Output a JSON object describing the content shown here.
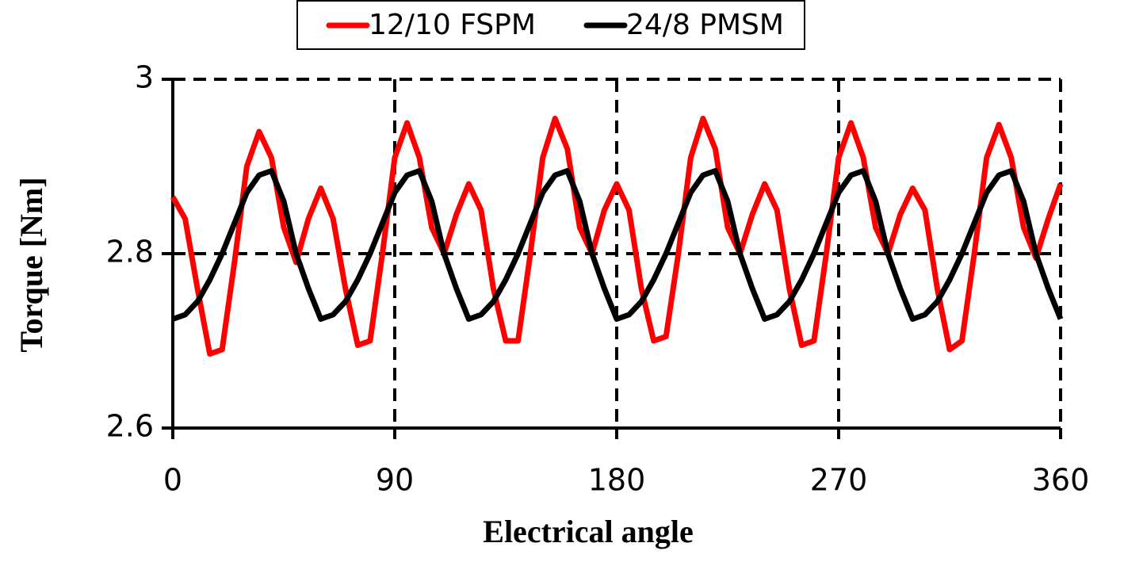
{
  "chart_data": {
    "type": "line",
    "xlabel": "Electrical angle",
    "ylabel": "Torque [Nm]",
    "x": [
      0,
      5,
      10,
      15,
      20,
      25,
      30,
      35,
      40,
      45,
      50,
      55,
      60,
      65,
      70,
      75,
      80,
      85,
      90,
      95,
      100,
      105,
      110,
      115,
      120,
      125,
      130,
      135,
      140,
      145,
      150,
      155,
      160,
      165,
      170,
      175,
      180,
      185,
      190,
      195,
      200,
      205,
      210,
      215,
      220,
      225,
      230,
      235,
      240,
      245,
      250,
      255,
      260,
      265,
      270,
      275,
      280,
      285,
      290,
      295,
      300,
      305,
      310,
      315,
      320,
      325,
      330,
      335,
      340,
      345,
      350,
      355,
      360
    ],
    "series": [
      {
        "name": "12/10 FSPM",
        "color": "#ff0000",
        "values": [
          2.865,
          2.84,
          2.76,
          2.685,
          2.69,
          2.79,
          2.9,
          2.94,
          2.91,
          2.83,
          2.79,
          2.84,
          2.875,
          2.84,
          2.76,
          2.695,
          2.7,
          2.8,
          2.91,
          2.95,
          2.91,
          2.83,
          2.8,
          2.845,
          2.88,
          2.85,
          2.76,
          2.7,
          2.7,
          2.8,
          2.91,
          2.955,
          2.92,
          2.83,
          2.8,
          2.85,
          2.88,
          2.85,
          2.76,
          2.7,
          2.705,
          2.8,
          2.91,
          2.955,
          2.92,
          2.83,
          2.8,
          2.845,
          2.88,
          2.85,
          2.76,
          2.695,
          2.7,
          2.8,
          2.91,
          2.95,
          2.91,
          2.83,
          2.8,
          2.845,
          2.875,
          2.85,
          2.76,
          2.69,
          2.7,
          2.8,
          2.91,
          2.948,
          2.91,
          2.83,
          2.795,
          2.84,
          2.88
        ]
      },
      {
        "name": "24/8 PMSM",
        "color": "#000000",
        "values": [
          2.725,
          2.73,
          2.745,
          2.77,
          2.8,
          2.835,
          2.87,
          2.89,
          2.895,
          2.86,
          2.8,
          2.76,
          2.725,
          2.73,
          2.745,
          2.77,
          2.8,
          2.835,
          2.87,
          2.89,
          2.895,
          2.86,
          2.8,
          2.76,
          2.725,
          2.73,
          2.745,
          2.77,
          2.8,
          2.835,
          2.87,
          2.89,
          2.895,
          2.86,
          2.8,
          2.76,
          2.725,
          2.73,
          2.745,
          2.77,
          2.8,
          2.835,
          2.87,
          2.89,
          2.895,
          2.86,
          2.8,
          2.76,
          2.725,
          2.73,
          2.745,
          2.77,
          2.8,
          2.835,
          2.87,
          2.89,
          2.895,
          2.86,
          2.8,
          2.76,
          2.725,
          2.73,
          2.745,
          2.77,
          2.8,
          2.835,
          2.87,
          2.89,
          2.895,
          2.86,
          2.8,
          2.76,
          2.725
        ]
      }
    ],
    "xlim": [
      0,
      360
    ],
    "xticks": [
      0,
      90,
      180,
      270,
      360
    ],
    "ylim": [
      2.6,
      3
    ],
    "yticks": [
      2.6,
      2.8,
      3
    ],
    "grid": true,
    "legend": "top"
  }
}
